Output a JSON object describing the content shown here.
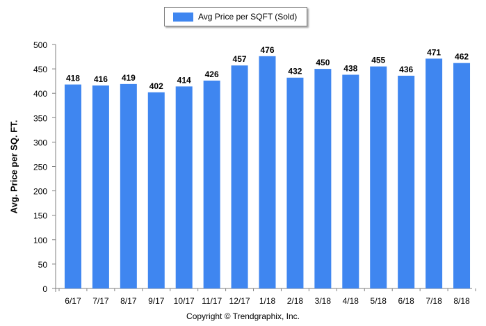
{
  "legend": {
    "label": "Avg Price per SQFT (Sold)"
  },
  "footer": {
    "text": "Copyright © Trendgraphix, Inc."
  },
  "chart_data": {
    "type": "bar",
    "ylabel": "Avg. Price per SQ. FT.",
    "xlabel": "",
    "ylim": [
      0,
      500
    ],
    "yticks": [
      0,
      50,
      100,
      150,
      200,
      250,
      300,
      350,
      400,
      450,
      500
    ],
    "grid": false,
    "legend_position": "top-center",
    "colors": {
      "bar": "#3f86f0"
    },
    "categories": [
      "6/17",
      "7/17",
      "8/17",
      "9/17",
      "10/17",
      "11/17",
      "12/17",
      "1/18",
      "2/18",
      "3/18",
      "4/18",
      "5/18",
      "6/18",
      "7/18",
      "8/18"
    ],
    "series": [
      {
        "name": "Avg Price per SQFT (Sold)",
        "values": [
          418,
          416,
          419,
          402,
          414,
          426,
          457,
          476,
          432,
          450,
          438,
          455,
          436,
          471,
          462
        ]
      }
    ]
  }
}
